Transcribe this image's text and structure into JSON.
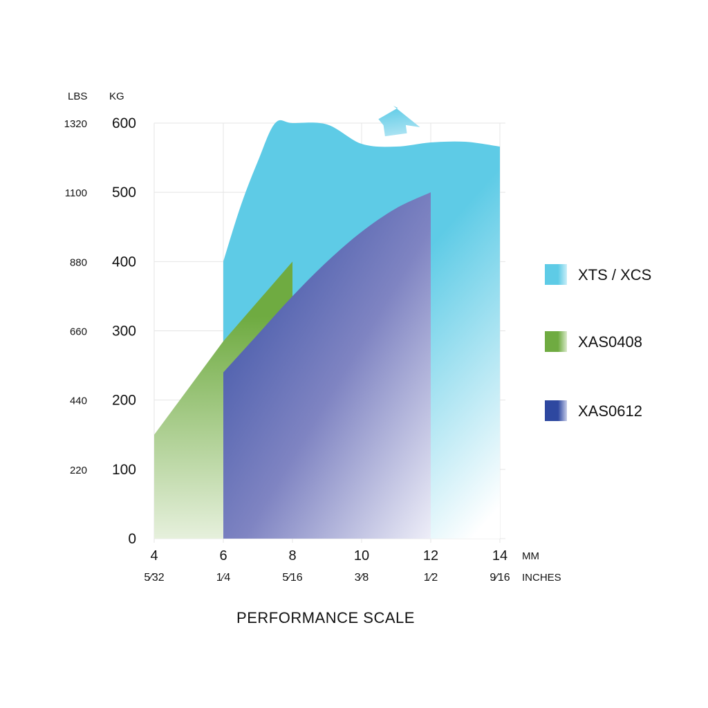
{
  "chart_data": {
    "type": "area",
    "title": "PERFORMANCE SCALE",
    "x_units": {
      "primary": "MM",
      "secondary": "INCHES"
    },
    "y_units": {
      "left": "LBS",
      "right": "KG"
    },
    "x_ticks": [
      {
        "mm": 4,
        "mm_label": "4",
        "inch": "5⁄32"
      },
      {
        "mm": 6,
        "mm_label": "6",
        "inch": "1⁄4"
      },
      {
        "mm": 8,
        "mm_label": "8",
        "inch": "5⁄16"
      },
      {
        "mm": 10,
        "mm_label": "10",
        "inch": "3⁄8"
      },
      {
        "mm": 12,
        "mm_label": "12",
        "inch": "1⁄2"
      },
      {
        "mm": 14,
        "mm_label": "14",
        "inch": "9⁄16"
      }
    ],
    "y_ticks": [
      {
        "kg": 0,
        "kg_label": "0",
        "lbs": ""
      },
      {
        "kg": 100,
        "kg_label": "100",
        "lbs": "220"
      },
      {
        "kg": 200,
        "kg_label": "200",
        "lbs": "440"
      },
      {
        "kg": 300,
        "kg_label": "300",
        "lbs": "660"
      },
      {
        "kg": 400,
        "kg_label": "400",
        "lbs": "880"
      },
      {
        "kg": 500,
        "kg_label": "500",
        "lbs": "1100"
      },
      {
        "kg": 600,
        "kg_label": "600",
        "lbs": "1320"
      }
    ],
    "xlim": [
      4,
      14
    ],
    "ylim": [
      0,
      600
    ],
    "grid": true,
    "legend_position": "right",
    "series": [
      {
        "name": "XTS / XCS",
        "color": "#5ecbe6",
        "fade": "bottom-right",
        "x": [
          6,
          6.5,
          7,
          7.5,
          8,
          9,
          10,
          11,
          12,
          13,
          14
        ],
        "y": [
          400,
          480,
          545,
          600,
          600,
          598,
          570,
          566,
          572,
          573,
          566
        ],
        "continues_above_max": true
      },
      {
        "name": "XAS0408",
        "color": "#6fab41",
        "fade": "bottom-left",
        "x": [
          4,
          6,
          8
        ],
        "y": [
          150,
          285,
          400
        ]
      },
      {
        "name": "XAS0612",
        "color": "#2e48a0",
        "fade": "bottom",
        "x": [
          6,
          7,
          8,
          9,
          10,
          11,
          12
        ],
        "y": [
          240,
          295,
          350,
          400,
          443,
          477,
          500
        ]
      }
    ]
  }
}
